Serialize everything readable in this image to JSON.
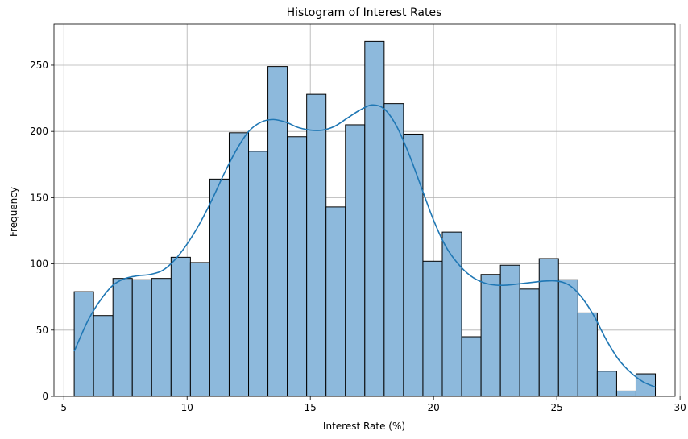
{
  "chart_data": {
    "type": "bar",
    "subtype": "histogram",
    "title": "Histogram of Interest Rates",
    "xlabel": "Interest Rate (%)",
    "ylabel": "Frequency",
    "xlim": [
      4.6,
      29.8
    ],
    "ylim": [
      0,
      281
    ],
    "xticks": [
      5,
      10,
      15,
      20,
      25,
      30
    ],
    "yticks": [
      0,
      50,
      100,
      150,
      200,
      250
    ],
    "grid": true,
    "bin_start": 5.42,
    "bin_width": 0.786,
    "values": [
      79,
      61,
      89,
      88,
      89,
      105,
      101,
      164,
      199,
      185,
      249,
      196,
      228,
      143,
      205,
      268,
      221,
      198,
      102,
      124,
      45,
      92,
      99,
      81,
      104,
      88,
      63,
      19,
      4,
      17
    ],
    "bar_color": "#8db9dc",
    "kde": {
      "color": "#1f77b4",
      "x": [
        5.42,
        6.0,
        6.5,
        7.0,
        7.5,
        8.0,
        8.5,
        9.0,
        9.5,
        10.0,
        10.5,
        11.0,
        11.5,
        12.0,
        12.5,
        13.0,
        13.5,
        14.0,
        14.5,
        15.0,
        15.5,
        16.0,
        16.5,
        17.0,
        17.5,
        18.0,
        18.5,
        19.0,
        19.5,
        20.0,
        20.5,
        21.0,
        21.5,
        22.0,
        22.5,
        23.0,
        23.5,
        24.0,
        24.5,
        25.0,
        25.5,
        26.0,
        26.5,
        27.0,
        27.5,
        28.0,
        28.5,
        29.0
      ],
      "y": [
        34,
        58,
        73,
        84,
        89,
        91,
        92,
        95,
        103,
        115,
        130,
        148,
        168,
        186,
        200,
        207,
        209,
        207,
        203,
        201,
        201,
        204,
        210,
        216,
        220,
        217,
        204,
        183,
        158,
        133,
        113,
        100,
        91,
        86,
        84,
        84,
        85,
        86,
        87,
        87,
        84,
        75,
        61,
        43,
        28,
        18,
        11,
        7
      ]
    }
  }
}
